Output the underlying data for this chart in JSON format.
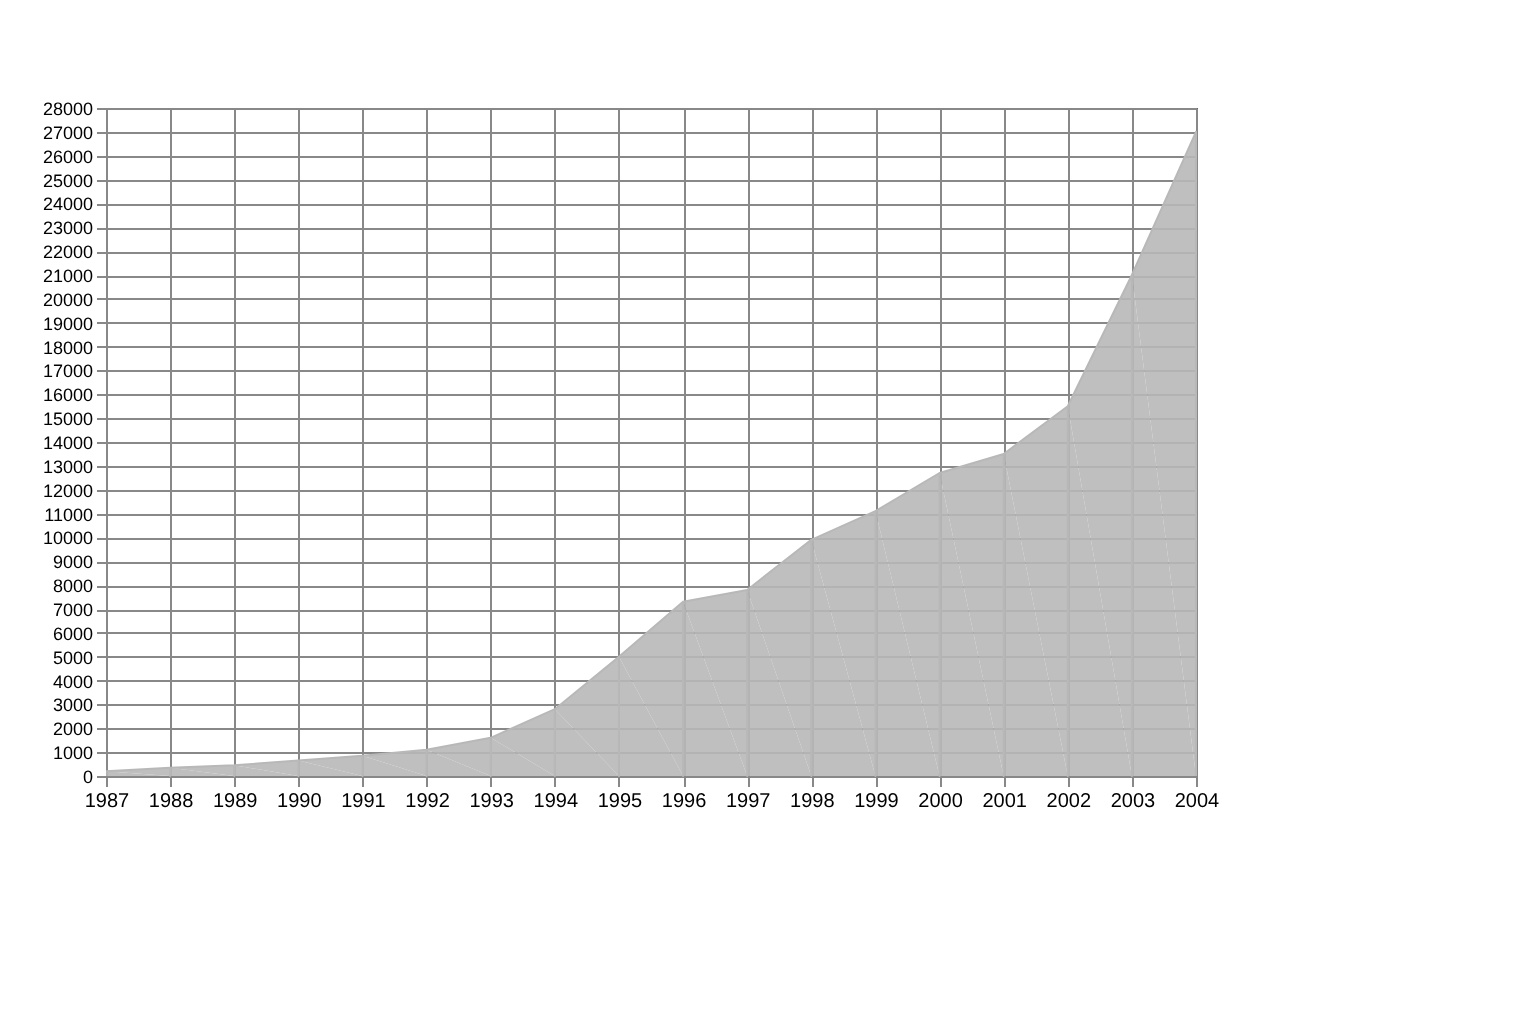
{
  "chart_data": {
    "type": "area",
    "x": [
      1987,
      1988,
      1989,
      1990,
      1991,
      1992,
      1993,
      1994,
      1995,
      1996,
      1997,
      1998,
      1999,
      2000,
      2001,
      2002,
      2003,
      2004
    ],
    "series": [
      {
        "color": "#b8b8b8",
        "values": [
          200,
          350,
          450,
          650,
          850,
          1100,
          1600,
          2800,
          5000,
          7300,
          7800,
          9900,
          11100,
          12700,
          13500,
          15500,
          21000,
          27000
        ]
      }
    ],
    "xlim": [
      1987,
      2004
    ],
    "xticks": [
      1987,
      1988,
      1989,
      1990,
      1991,
      1992,
      1993,
      1994,
      1995,
      1996,
      1997,
      1998,
      1999,
      2000,
      2001,
      2002,
      2003,
      2004
    ],
    "ylim": [
      0,
      28000
    ],
    "yticks": [
      0,
      1000,
      2000,
      3000,
      4000,
      5000,
      6000,
      7000,
      8000,
      9000,
      10000,
      11000,
      12000,
      13000,
      14000,
      15000,
      16000,
      17000,
      18000,
      19000,
      20000,
      21000,
      22000,
      23000,
      24000,
      25000,
      26000,
      27000,
      28000
    ],
    "grid": true,
    "legend": false
  }
}
